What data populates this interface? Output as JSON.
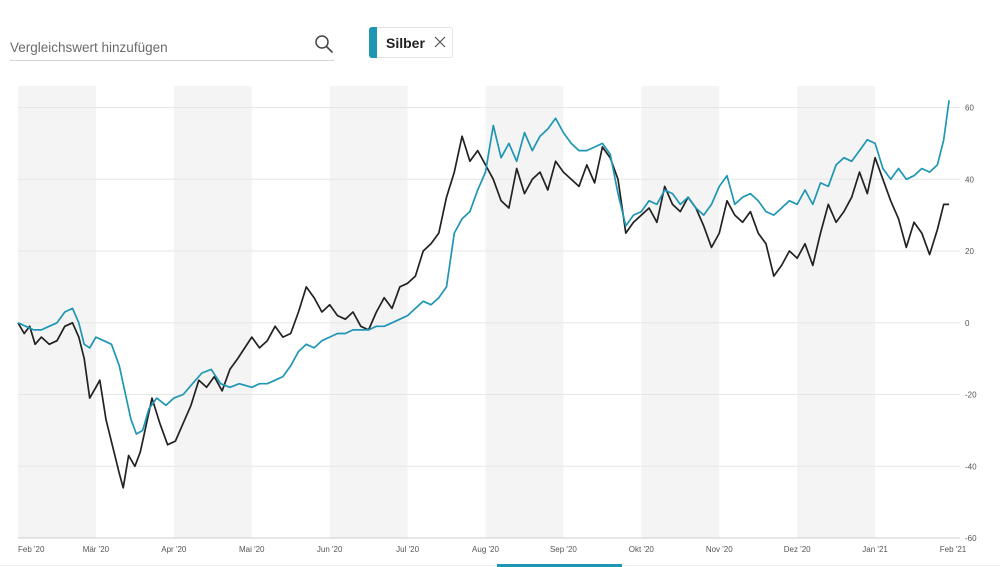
{
  "search": {
    "placeholder": "Vergleichswert hinzufügen",
    "icon": "search-icon"
  },
  "chip": {
    "label": "Silber",
    "color": "#1e96b4",
    "close_icon": "close-icon"
  },
  "colors": {
    "primary": "#222222",
    "compare": "#1e96b4",
    "band": "#f4f4f4",
    "grid": "#e6e6e6"
  },
  "chart_data": {
    "type": "line",
    "title": "",
    "xlabel": "",
    "ylabel": "",
    "x_axis": {
      "ticks": [
        "Feb '20",
        "Mär '20",
        "Apr '20",
        "Mai '20",
        "Jun '20",
        "Jul '20",
        "Aug '20",
        "Sep '20",
        "Okt '20",
        "Nov '20",
        "Dez '20",
        "Jan '21",
        "Feb '21"
      ],
      "range_months": [
        0,
        12
      ]
    },
    "y_axis": {
      "ticks": [
        60,
        40,
        20,
        0,
        -20,
        -40,
        -60
      ],
      "ylim": [
        -60,
        66
      ],
      "position": "right",
      "unit": "%"
    },
    "grid": true,
    "alternating_month_bands": true,
    "legend": "none",
    "series": [
      {
        "color": "#222222",
        "points": [
          [
            0.0,
            0
          ],
          [
            0.08,
            -3
          ],
          [
            0.15,
            -1
          ],
          [
            0.22,
            -6
          ],
          [
            0.3,
            -4
          ],
          [
            0.4,
            -6
          ],
          [
            0.5,
            -5
          ],
          [
            0.6,
            -1
          ],
          [
            0.7,
            0
          ],
          [
            0.78,
            -4
          ],
          [
            0.85,
            -10
          ],
          [
            0.92,
            -21
          ],
          [
            1.0,
            -18
          ],
          [
            1.05,
            -16
          ],
          [
            1.13,
            -27
          ],
          [
            1.22,
            -35
          ],
          [
            1.3,
            -42
          ],
          [
            1.35,
            -46
          ],
          [
            1.42,
            -37
          ],
          [
            1.5,
            -40
          ],
          [
            1.57,
            -36
          ],
          [
            1.65,
            -28
          ],
          [
            1.72,
            -21
          ],
          [
            1.82,
            -28
          ],
          [
            1.92,
            -34
          ],
          [
            2.02,
            -33
          ],
          [
            2.12,
            -28
          ],
          [
            2.22,
            -23
          ],
          [
            2.32,
            -16
          ],
          [
            2.42,
            -18
          ],
          [
            2.52,
            -15
          ],
          [
            2.62,
            -19
          ],
          [
            2.72,
            -13
          ],
          [
            2.82,
            -10
          ],
          [
            3.0,
            -4
          ],
          [
            3.1,
            -7
          ],
          [
            3.2,
            -5
          ],
          [
            3.3,
            -1
          ],
          [
            3.4,
            -4
          ],
          [
            3.5,
            -3
          ],
          [
            3.6,
            3
          ],
          [
            3.7,
            10
          ],
          [
            3.8,
            7
          ],
          [
            3.9,
            3
          ],
          [
            4.0,
            5
          ],
          [
            4.1,
            2
          ],
          [
            4.2,
            1
          ],
          [
            4.3,
            3
          ],
          [
            4.4,
            -1
          ],
          [
            4.5,
            -2
          ],
          [
            4.6,
            3
          ],
          [
            4.7,
            7
          ],
          [
            4.8,
            4
          ],
          [
            4.9,
            10
          ],
          [
            5.0,
            11
          ],
          [
            5.1,
            13
          ],
          [
            5.2,
            20
          ],
          [
            5.3,
            22
          ],
          [
            5.4,
            25
          ],
          [
            5.5,
            35
          ],
          [
            5.6,
            42
          ],
          [
            5.7,
            52
          ],
          [
            5.8,
            45
          ],
          [
            5.9,
            48
          ],
          [
            6.0,
            44
          ],
          [
            6.1,
            40
          ],
          [
            6.2,
            34
          ],
          [
            6.3,
            32
          ],
          [
            6.4,
            43
          ],
          [
            6.5,
            36
          ],
          [
            6.6,
            40
          ],
          [
            6.7,
            42
          ],
          [
            6.8,
            37
          ],
          [
            6.9,
            45
          ],
          [
            7.0,
            42
          ],
          [
            7.1,
            40
          ],
          [
            7.2,
            38
          ],
          [
            7.3,
            44
          ],
          [
            7.4,
            39
          ],
          [
            7.5,
            49
          ],
          [
            7.6,
            46
          ],
          [
            7.7,
            40
          ],
          [
            7.8,
            25
          ],
          [
            7.9,
            28
          ],
          [
            8.0,
            30
          ],
          [
            8.1,
            32
          ],
          [
            8.2,
            28
          ],
          [
            8.3,
            38
          ],
          [
            8.4,
            33
          ],
          [
            8.5,
            31
          ],
          [
            8.6,
            35
          ],
          [
            8.7,
            32
          ],
          [
            8.8,
            27
          ],
          [
            8.9,
            21
          ],
          [
            9.0,
            25
          ],
          [
            9.1,
            34
          ],
          [
            9.2,
            30
          ],
          [
            9.3,
            28
          ],
          [
            9.4,
            31
          ],
          [
            9.5,
            25
          ],
          [
            9.6,
            22
          ],
          [
            9.7,
            13
          ],
          [
            9.8,
            16
          ],
          [
            9.9,
            20
          ],
          [
            10.0,
            18
          ],
          [
            10.1,
            22
          ],
          [
            10.2,
            16
          ],
          [
            10.3,
            25
          ],
          [
            10.4,
            33
          ],
          [
            10.5,
            28
          ],
          [
            10.6,
            31
          ],
          [
            10.7,
            35
          ],
          [
            10.8,
            42
          ],
          [
            10.9,
            36
          ],
          [
            11.0,
            46
          ],
          [
            11.1,
            40
          ],
          [
            11.2,
            34
          ],
          [
            11.3,
            29
          ],
          [
            11.4,
            21
          ],
          [
            11.5,
            28
          ],
          [
            11.6,
            25
          ],
          [
            11.7,
            19
          ],
          [
            11.8,
            26
          ],
          [
            11.88,
            33
          ],
          [
            11.95,
            33
          ]
        ]
      },
      {
        "name": "Silber",
        "color": "#1e96b4",
        "points": [
          [
            0.0,
            0
          ],
          [
            0.1,
            -1
          ],
          [
            0.2,
            -2
          ],
          [
            0.3,
            -2
          ],
          [
            0.4,
            -1
          ],
          [
            0.5,
            0
          ],
          [
            0.6,
            3
          ],
          [
            0.7,
            4
          ],
          [
            0.78,
            0
          ],
          [
            0.85,
            -6
          ],
          [
            0.92,
            -7
          ],
          [
            1.0,
            -4
          ],
          [
            1.1,
            -5
          ],
          [
            1.2,
            -6
          ],
          [
            1.3,
            -12
          ],
          [
            1.38,
            -20
          ],
          [
            1.45,
            -27
          ],
          [
            1.52,
            -31
          ],
          [
            1.6,
            -30
          ],
          [
            1.68,
            -24
          ],
          [
            1.78,
            -21
          ],
          [
            1.9,
            -23
          ],
          [
            2.0,
            -21
          ],
          [
            2.12,
            -20
          ],
          [
            2.24,
            -17
          ],
          [
            2.36,
            -14
          ],
          [
            2.48,
            -13
          ],
          [
            2.6,
            -17
          ],
          [
            2.72,
            -18
          ],
          [
            2.84,
            -17
          ],
          [
            3.0,
            -18
          ],
          [
            3.1,
            -17
          ],
          [
            3.2,
            -17
          ],
          [
            3.3,
            -16
          ],
          [
            3.4,
            -15
          ],
          [
            3.5,
            -12
          ],
          [
            3.6,
            -8
          ],
          [
            3.7,
            -6
          ],
          [
            3.8,
            -7
          ],
          [
            3.9,
            -5
          ],
          [
            4.0,
            -4
          ],
          [
            4.1,
            -3
          ],
          [
            4.2,
            -3
          ],
          [
            4.3,
            -2
          ],
          [
            4.4,
            -2
          ],
          [
            4.5,
            -2
          ],
          [
            4.6,
            -1
          ],
          [
            4.7,
            -1
          ],
          [
            4.8,
            0
          ],
          [
            4.9,
            1
          ],
          [
            5.0,
            2
          ],
          [
            5.1,
            4
          ],
          [
            5.2,
            6
          ],
          [
            5.3,
            5
          ],
          [
            5.4,
            7
          ],
          [
            5.5,
            10
          ],
          [
            5.6,
            25
          ],
          [
            5.7,
            29
          ],
          [
            5.8,
            31
          ],
          [
            5.9,
            37
          ],
          [
            6.0,
            42
          ],
          [
            6.1,
            55
          ],
          [
            6.2,
            46
          ],
          [
            6.3,
            50
          ],
          [
            6.4,
            45
          ],
          [
            6.5,
            53
          ],
          [
            6.6,
            48
          ],
          [
            6.7,
            52
          ],
          [
            6.8,
            54
          ],
          [
            6.9,
            57
          ],
          [
            7.0,
            53
          ],
          [
            7.1,
            50
          ],
          [
            7.2,
            48
          ],
          [
            7.3,
            48
          ],
          [
            7.4,
            49
          ],
          [
            7.5,
            50
          ],
          [
            7.6,
            47
          ],
          [
            7.7,
            36
          ],
          [
            7.8,
            27
          ],
          [
            7.9,
            30
          ],
          [
            8.0,
            31
          ],
          [
            8.1,
            34
          ],
          [
            8.2,
            33
          ],
          [
            8.3,
            37
          ],
          [
            8.4,
            36
          ],
          [
            8.5,
            33
          ],
          [
            8.6,
            35
          ],
          [
            8.7,
            32
          ],
          [
            8.8,
            30
          ],
          [
            8.9,
            33
          ],
          [
            9.0,
            38
          ],
          [
            9.1,
            41
          ],
          [
            9.2,
            33
          ],
          [
            9.3,
            35
          ],
          [
            9.4,
            36
          ],
          [
            9.5,
            34
          ],
          [
            9.6,
            31
          ],
          [
            9.7,
            30
          ],
          [
            9.8,
            32
          ],
          [
            9.9,
            34
          ],
          [
            10.0,
            33
          ],
          [
            10.1,
            37
          ],
          [
            10.2,
            33
          ],
          [
            10.3,
            39
          ],
          [
            10.4,
            38
          ],
          [
            10.5,
            44
          ],
          [
            10.6,
            46
          ],
          [
            10.7,
            45
          ],
          [
            10.8,
            48
          ],
          [
            10.9,
            51
          ],
          [
            11.0,
            50
          ],
          [
            11.1,
            43
          ],
          [
            11.2,
            40
          ],
          [
            11.3,
            43
          ],
          [
            11.4,
            40
          ],
          [
            11.5,
            41
          ],
          [
            11.6,
            43
          ],
          [
            11.7,
            42
          ],
          [
            11.8,
            44
          ],
          [
            11.88,
            51
          ],
          [
            11.95,
            62
          ]
        ]
      }
    ]
  }
}
